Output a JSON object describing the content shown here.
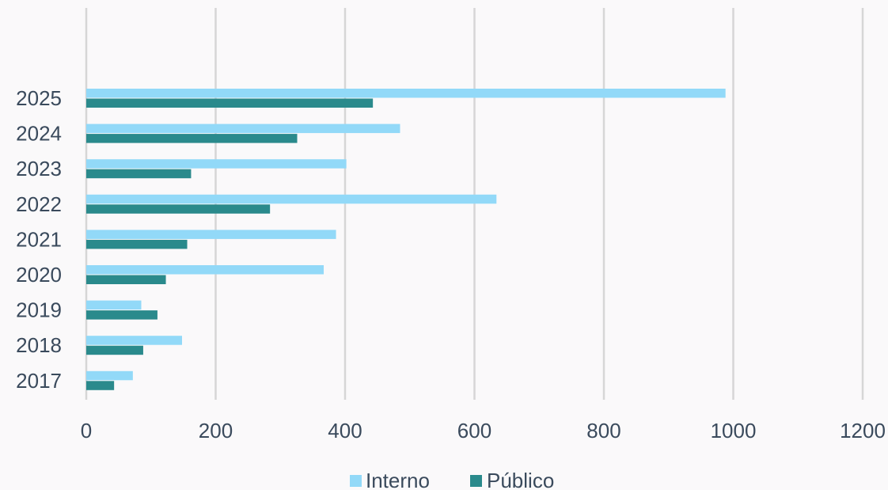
{
  "chart_data": {
    "type": "bar",
    "orientation": "horizontal",
    "categories": [
      "2025",
      "2024",
      "2023",
      "2022",
      "2021",
      "2020",
      "2019",
      "2018",
      "2017"
    ],
    "series": [
      {
        "name": "Interno",
        "values": [
          988,
          485,
          402,
          634,
          386,
          367,
          85,
          148,
          72
        ],
        "color": "#92d9f8"
      },
      {
        "name": "Público",
        "values": [
          443,
          326,
          162,
          284,
          156,
          123,
          110,
          88,
          43
        ],
        "color": "#2a8a8c"
      }
    ],
    "xticks": [
      "0",
      "200",
      "400",
      "600",
      "800",
      "1000",
      "1200"
    ],
    "xlim": [
      0,
      1200
    ],
    "grid": "vertical",
    "legend_position": "bottom-center",
    "title": "",
    "xlabel": "",
    "ylabel": ""
  }
}
